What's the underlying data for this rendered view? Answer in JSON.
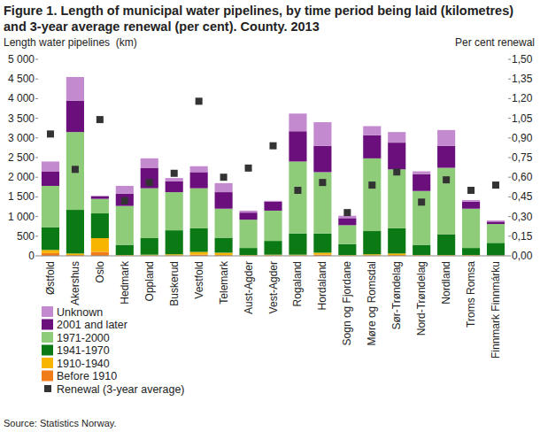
{
  "chart_data": {
    "type": "bar",
    "stacked": true,
    "grid": false,
    "title": "Figure 1. Length of municipal water pipelines, by time period being laid (kilometres) and 3-year average renewal (per cent). County. 2013",
    "y_label": "Length water pipelines  (km)",
    "y2_label": "Per cent renewal",
    "source": "Source: Statistics Norway.",
    "legend": "bottom-left",
    "categories": [
      "Østfold",
      "Akershus",
      "Oslo",
      "Hedmark",
      "Oppland",
      "Buskerud",
      "Vestfold",
      "Telemark",
      "Aust-Agder",
      "Vest-Agder",
      "Rogaland",
      "Hordaland",
      "Sogn og Fjordane",
      "Møre og Romsdal",
      "Sør-Trøndelag",
      "Nord-Trøndelag",
      "Nordland",
      "Troms Romsa",
      "Finnmark Finnmárku"
    ],
    "ylim": [
      0,
      5000
    ],
    "yticks": [
      0,
      {
        "value": 500,
        "label": "500"
      },
      {
        "value": 1000,
        "label": "1 000"
      },
      {
        "value": 1500,
        "label": "1 500"
      },
      {
        "value": 2000,
        "label": "2 000"
      },
      {
        "value": 2500,
        "label": "2 500"
      },
      {
        "value": 3000,
        "label": "3 000"
      },
      {
        "value": 3500,
        "label": "3 500"
      },
      {
        "value": 4000,
        "label": "4 000"
      },
      {
        "value": 4500,
        "label": "4 500"
      },
      {
        "value": 5000,
        "label": "5 000"
      }
    ],
    "y2lim": [
      0,
      1.5
    ],
    "y2ticks": [
      {
        "value": 0,
        "label": "0,00"
      },
      {
        "value": 0.15,
        "label": "0,15"
      },
      {
        "value": 0.3,
        "label": "0,30"
      },
      {
        "value": 0.45,
        "label": "0,45"
      },
      {
        "value": 0.6,
        "label": "0,60"
      },
      {
        "value": 0.75,
        "label": "0,75"
      },
      {
        "value": 0.9,
        "label": "0,90"
      },
      {
        "value": 1.05,
        "label": "1,05"
      },
      {
        "value": 1.2,
        "label": "1,20"
      },
      {
        "value": 1.35,
        "label": "1,35"
      },
      {
        "value": 1.5,
        "label": "1,50"
      }
    ],
    "series": [
      {
        "name": "Before 1910",
        "color": "#f07d1a",
        "values": [
          70,
          20,
          100,
          5,
          10,
          10,
          30,
          20,
          5,
          10,
          10,
          30,
          5,
          10,
          20,
          5,
          5,
          5,
          3
        ]
      },
      {
        "name": "1910-1940",
        "color": "#f7b500",
        "values": [
          80,
          40,
          350,
          15,
          20,
          30,
          70,
          60,
          15,
          20,
          20,
          50,
          15,
          30,
          40,
          15,
          15,
          15,
          7
        ]
      },
      {
        "name": "1941-1970",
        "color": "#0b7a14",
        "values": [
          580,
          1110,
          630,
          260,
          420,
          610,
          600,
          380,
          180,
          350,
          540,
          490,
          280,
          590,
          640,
          260,
          530,
          180,
          320
        ]
      },
      {
        "name": "1971-2000",
        "color": "#8fcc7a",
        "values": [
          1050,
          1980,
          370,
          990,
          1270,
          970,
          1020,
          740,
          720,
          770,
          1830,
          1560,
          480,
          1850,
          1500,
          1370,
          1690,
          1000,
          480
        ]
      },
      {
        "name": "2001 and later",
        "color": "#6b0f7d",
        "values": [
          370,
          800,
          60,
          310,
          510,
          280,
          410,
          420,
          180,
          230,
          770,
          670,
          180,
          590,
          680,
          430,
          560,
          180,
          60
        ]
      },
      {
        "name": "Unknown",
        "color": "#c48ad0",
        "values": [
          250,
          600,
          20,
          200,
          250,
          80,
          150,
          230,
          50,
          20,
          450,
          600,
          60,
          230,
          270,
          70,
          400,
          40,
          30
        ]
      },
      {
        "name": "Renewal (3-year average)",
        "type": "scatter",
        "axis": "y2",
        "marker": "square",
        "color": "#333333",
        "values": [
          0.93,
          0.66,
          1.04,
          0.42,
          0.56,
          0.63,
          1.18,
          0.6,
          0.67,
          0.84,
          0.5,
          0.56,
          0.33,
          0.54,
          0.64,
          0.41,
          0.58,
          0.5,
          0.54
        ]
      }
    ]
  }
}
